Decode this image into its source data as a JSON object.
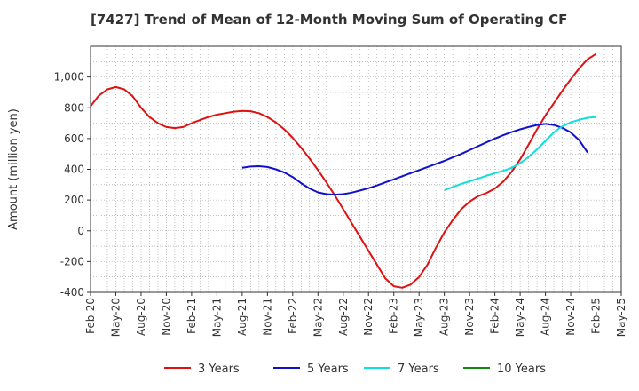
{
  "chart_data": {
    "type": "line",
    "title": "[7427]  Trend of Mean of 12-Month Moving Sum of Operating CF",
    "xlabel": "",
    "ylabel": "Amount (million yen)",
    "ylim": [
      -400,
      1200
    ],
    "yticks": [
      -400,
      -200,
      0,
      200,
      400,
      600,
      800,
      1000
    ],
    "ytick_labels": [
      "-400",
      "-200",
      "0",
      "200",
      "400",
      "600",
      "800",
      "1,000"
    ],
    "xticks": [
      "Feb-20",
      "May-20",
      "Aug-20",
      "Nov-20",
      "Feb-21",
      "May-21",
      "Aug-21",
      "Nov-21",
      "Feb-22",
      "May-22",
      "Aug-22",
      "Nov-22",
      "Feb-23",
      "May-23",
      "Aug-23",
      "Nov-23",
      "Feb-24",
      "May-24",
      "Aug-24",
      "Nov-24",
      "Feb-25",
      "May-25"
    ],
    "grid": true,
    "legend_position": "bottom",
    "series": [
      {
        "name": "3 Years",
        "color": "#dd1111",
        "start_index": 0,
        "values": [
          810,
          880,
          920,
          935,
          920,
          875,
          800,
          740,
          700,
          675,
          668,
          675,
          700,
          720,
          740,
          755,
          765,
          775,
          780,
          778,
          765,
          740,
          705,
          660,
          605,
          540,
          470,
          395,
          315,
          230,
          140,
          50,
          -40,
          -130,
          -220,
          -310,
          -360,
          -370,
          -350,
          -300,
          -220,
          -110,
          -10,
          70,
          140,
          190,
          225,
          245,
          275,
          320,
          385,
          465,
          560,
          660,
          750,
          830,
          910,
          985,
          1055,
          1115,
          1150
        ]
      },
      {
        "name": "5 Years",
        "color": "#1111cc",
        "start_index": 18,
        "values": [
          410,
          418,
          420,
          415,
          400,
          380,
          350,
          310,
          275,
          250,
          238,
          235,
          238,
          248,
          262,
          277,
          295,
          315,
          335,
          355,
          375,
          395,
          415,
          435,
          455,
          478,
          500,
          525,
          550,
          575,
          600,
          622,
          642,
          660,
          675,
          688,
          695,
          688,
          670,
          640,
          590,
          510
        ]
      },
      {
        "name": "7 Years",
        "color": "#11dddd",
        "start_index": 42,
        "values": [
          265,
          285,
          305,
          322,
          340,
          358,
          375,
          390,
          410,
          440,
          480,
          530,
          585,
          640,
          680,
          705,
          722,
          735,
          740
        ]
      },
      {
        "name": "10 Years",
        "color": "#118811",
        "start_index": 0,
        "values": []
      }
    ]
  }
}
